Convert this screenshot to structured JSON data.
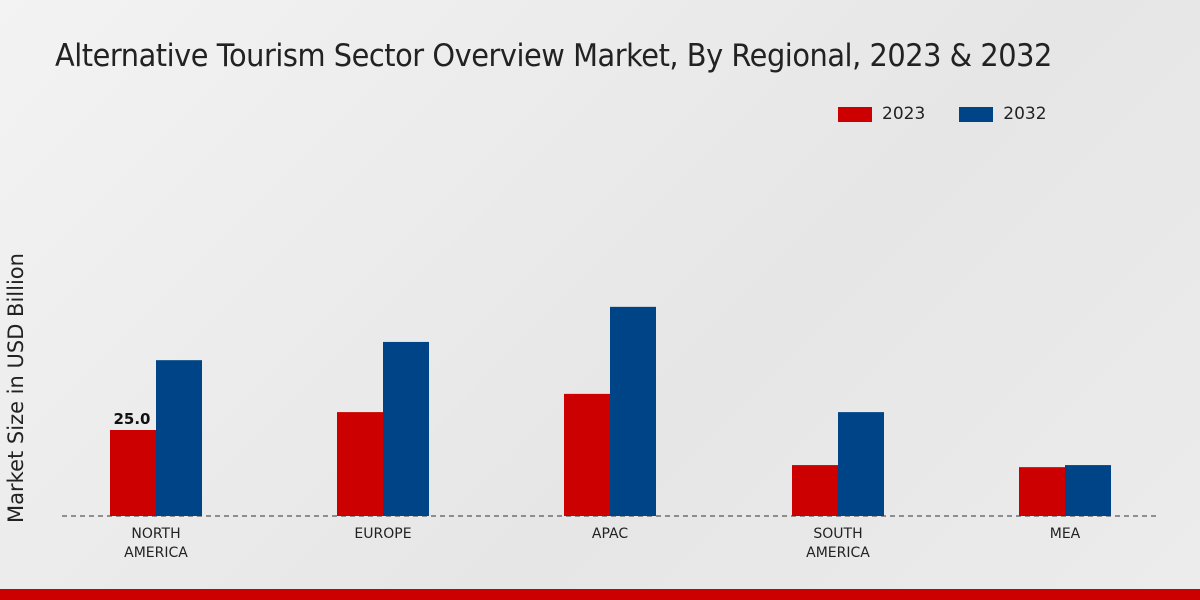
{
  "chart_data": {
    "type": "bar",
    "title": "Alternative Tourism Sector Overview Market, By Regional, 2023 & 2032",
    "xlabel": "",
    "ylabel": "Market Size in USD Billion",
    "categories": [
      "NORTH\nAMERICA",
      "EUROPE",
      "APAC",
      "SOUTH\nAMERICA",
      "MEA"
    ],
    "series": [
      {
        "name": "2023",
        "color": "#cc0000",
        "values": [
          25.0,
          30.2,
          35.5,
          14.8,
          14.2
        ]
      },
      {
        "name": "2032",
        "color": "#004488",
        "values": [
          45.3,
          50.6,
          60.8,
          30.2,
          14.8
        ]
      }
    ],
    "data_labels": [
      {
        "series": 0,
        "index": 0,
        "text": "25.0"
      }
    ],
    "ylim": [
      0,
      120
    ],
    "grid": false,
    "legend_position": "top-right"
  }
}
